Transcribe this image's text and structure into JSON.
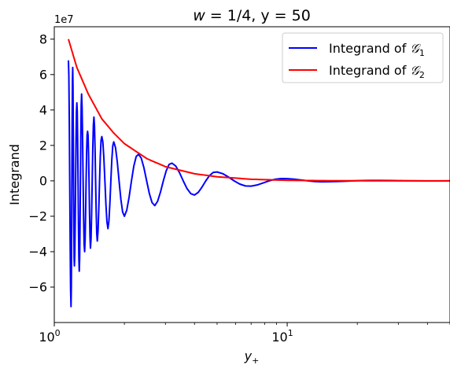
{
  "chart_data": {
    "type": "line",
    "title": {
      "lhs": "w",
      "eq": " = 1/4, y = 50"
    },
    "xlabel": {
      "base": "y",
      "sub": "+"
    },
    "ylabel": "Integrand",
    "xscale": "log",
    "xlim": [
      1.0,
      50.0
    ],
    "ylim": [
      -80000000,
      87000000
    ],
    "y_offset_label": "1e7",
    "x_ticks": [
      {
        "value": 1,
        "base": "10",
        "exp": "0"
      },
      {
        "value": 10,
        "base": "10",
        "exp": "1"
      }
    ],
    "y_ticks": [
      {
        "value": 80000000,
        "label": "8"
      },
      {
        "value": 60000000,
        "label": "6"
      },
      {
        "value": 40000000,
        "label": "4"
      },
      {
        "value": 20000000,
        "label": "2"
      },
      {
        "value": 0,
        "label": "0"
      },
      {
        "value": -20000000,
        "label": "−2"
      },
      {
        "value": -40000000,
        "label": "−4"
      },
      {
        "value": -60000000,
        "label": "−6"
      }
    ],
    "legend": "top-right",
    "grid": false,
    "series": [
      {
        "name": "Integrand of 𝒢1",
        "name_parts": {
          "prefix": "Integrand of ",
          "sym": "𝒢",
          "sub": "1"
        },
        "color": "#0000ff",
        "style": "oscillating-decay",
        "x": [
          1.15,
          1.18,
          1.2,
          1.22,
          1.25,
          1.28,
          1.31,
          1.35,
          1.39,
          1.43,
          1.48,
          1.53,
          1.6,
          1.7,
          1.8,
          2.0,
          2.3,
          2.7,
          3.2,
          4.0,
          5.0,
          7.0,
          10.0,
          15.0,
          25.0,
          50.0
        ],
        "y": [
          68000000,
          -71000000,
          64000000,
          -48000000,
          44000000,
          -51000000,
          49000000,
          -40000000,
          28000000,
          -38000000,
          36000000,
          -34000000,
          25000000,
          -27000000,
          22000000,
          -20000000,
          15000000,
          -14000000,
          10000000,
          -8000000,
          5000000,
          -3000000,
          1200000,
          -500000,
          200000,
          0
        ]
      },
      {
        "name": "Integrand of 𝒢2",
        "name_parts": {
          "prefix": "Integrand of ",
          "sym": "𝒢",
          "sub": "2"
        },
        "color": "#ff0000",
        "style": "smooth-envelope",
        "x": [
          1.15,
          1.25,
          1.4,
          1.6,
          1.8,
          2.0,
          2.5,
          3.0,
          4.0,
          5.0,
          7.0,
          10.0,
          15.0,
          25.0,
          50.0
        ],
        "y": [
          80000000,
          64000000,
          49000000,
          35000000,
          27000000,
          21000000,
          12500000,
          8000000,
          4000000,
          2300000,
          900000,
          300000,
          70000,
          10000,
          0
        ]
      }
    ]
  }
}
